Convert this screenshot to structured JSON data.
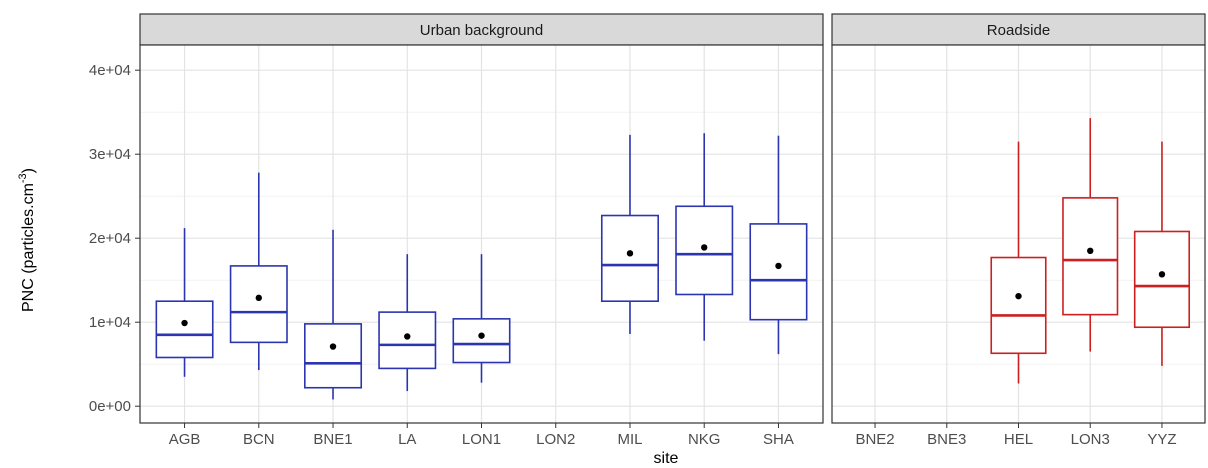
{
  "chart_data": {
    "type": "box",
    "xlabel": "site",
    "ylabel": "PNC (particles.cm",
    "ylabel_sup": "-3",
    "ylabel_close": ")",
    "ylim": [
      -2000,
      43000
    ],
    "y_ticks": [
      0,
      10000,
      20000,
      30000,
      40000
    ],
    "y_tick_labels": [
      "0e+00",
      "1e+04",
      "2e+04",
      "3e+04",
      "4e+04"
    ],
    "grid": true,
    "legend": "none",
    "colors": {
      "Urban background": "#2b35b0",
      "Roadside": "#cc1f1f"
    },
    "panels": [
      {
        "title": "Urban background",
        "categories": [
          "AGB",
          "BCN",
          "BNE1",
          "LA",
          "LON1",
          "LON2",
          "MIL",
          "NKG",
          "SHA"
        ],
        "boxes": [
          {
            "site": "AGB",
            "whisker_low": 3500,
            "q1": 5800,
            "median": 8500,
            "q3": 12500,
            "whisker_high": 21200,
            "mean": 9900
          },
          {
            "site": "BCN",
            "whisker_low": 4300,
            "q1": 7600,
            "median": 11200,
            "q3": 16700,
            "whisker_high": 27800,
            "mean": 12900
          },
          {
            "site": "BNE1",
            "whisker_low": 800,
            "q1": 2200,
            "median": 5100,
            "q3": 9800,
            "whisker_high": 21000,
            "mean": 7100
          },
          {
            "site": "LA",
            "whisker_low": 1800,
            "q1": 4500,
            "median": 7300,
            "q3": 11200,
            "whisker_high": 18100,
            "mean": 8300
          },
          {
            "site": "LON1",
            "whisker_low": 2800,
            "q1": 5200,
            "median": 7400,
            "q3": 10400,
            "whisker_high": 18100,
            "mean": 8400
          },
          {
            "site": "MIL",
            "whisker_low": 8600,
            "q1": 12500,
            "median": 16800,
            "q3": 22700,
            "whisker_high": 32300,
            "mean": 18200
          },
          {
            "site": "NKG",
            "whisker_low": 7800,
            "q1": 13300,
            "median": 18100,
            "q3": 23800,
            "whisker_high": 32500,
            "mean": 18900
          },
          {
            "site": "SHA",
            "whisker_low": 6200,
            "q1": 10300,
            "median": 15000,
            "q3": 21700,
            "whisker_high": 32200,
            "mean": 16700
          }
        ]
      },
      {
        "title": "Roadside",
        "categories": [
          "BNE2",
          "BNE3",
          "HEL",
          "LON3",
          "YYZ"
        ],
        "boxes": [
          {
            "site": "HEL",
            "whisker_low": 2700,
            "q1": 6300,
            "median": 10800,
            "q3": 17700,
            "whisker_high": 31500,
            "mean": 13100
          },
          {
            "site": "LON3",
            "whisker_low": 6500,
            "q1": 10900,
            "median": 17400,
            "q3": 24800,
            "whisker_high": 34300,
            "mean": 18500
          },
          {
            "site": "YYZ",
            "whisker_low": 4800,
            "q1": 9400,
            "median": 14300,
            "q3": 20800,
            "whisker_high": 31500,
            "mean": 15700
          }
        ]
      }
    ]
  }
}
